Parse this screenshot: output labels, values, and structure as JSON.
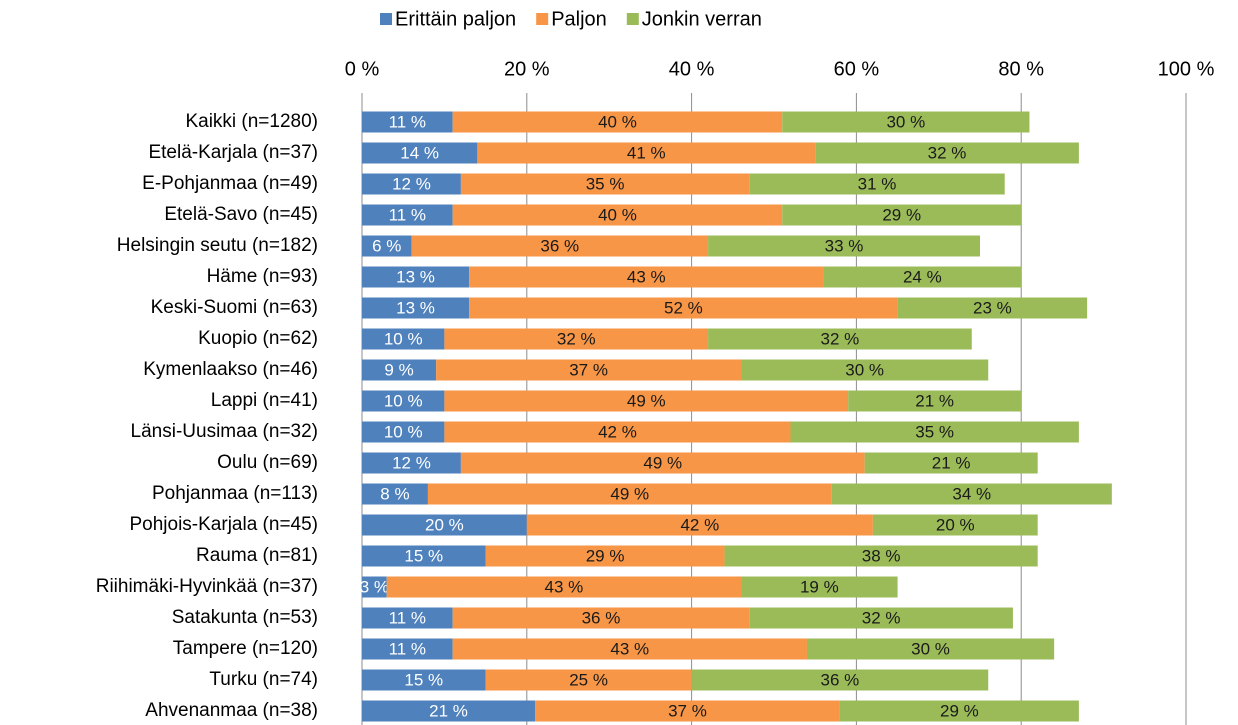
{
  "chart_data": {
    "type": "stacked-bar-horizontal",
    "categories": [
      "Kaikki (n=1280)",
      "Etelä-Karjala (n=37)",
      "E-Pohjanmaa (n=49)",
      "Etelä-Savo (n=45)",
      "Helsingin seutu (n=182)",
      "Häme (n=93)",
      "Keski-Suomi (n=63)",
      "Kuopio (n=62)",
      "Kymenlaakso (n=46)",
      "Lappi (n=41)",
      "Länsi-Uusimaa  (n=32)",
      "Oulu (n=69)",
      "Pohjanmaa (n=113)",
      "Pohjois-Karjala (n=45)",
      "Rauma (n=81)",
      "Riihimäki-Hyvinkää (n=37)",
      "Satakunta (n=53)",
      "Tampere (n=120)",
      "Turku (n=74)",
      "Ahvenanmaa (n=38)"
    ],
    "series": [
      {
        "name": "Erittäin paljon",
        "color": "#4f81bd",
        "label_color": "#ffffff",
        "values": [
          11,
          14,
          12,
          11,
          6,
          13,
          13,
          10,
          9,
          10,
          10,
          12,
          8,
          20,
          15,
          3,
          11,
          11,
          15,
          21
        ],
        "value_labels": [
          "11 %",
          "14 %",
          "12 %",
          "11 %",
          "6 %",
          "13 %",
          "13 %",
          "10 %",
          "9 %",
          "10 %",
          "10 %",
          "12 %",
          "8 %",
          "20 %",
          "15 %",
          "3 %",
          "11 %",
          "11 %",
          "15 %",
          "21 %"
        ]
      },
      {
        "name": "Paljon",
        "color": "#f79646",
        "label_color": "#1a1a1a",
        "values": [
          40,
          41,
          35,
          40,
          36,
          43,
          52,
          32,
          37,
          49,
          42,
          49,
          49,
          42,
          29,
          43,
          36,
          43,
          25,
          37
        ],
        "value_labels": [
          "40 %",
          "41 %",
          "35 %",
          "40 %",
          "36 %",
          "43 %",
          "52 %",
          "32 %",
          "37 %",
          "49 %",
          "42 %",
          "49 %",
          "49 %",
          "42 %",
          "29 %",
          "43 %",
          "36 %",
          "43 %",
          "25 %",
          "37 %"
        ]
      },
      {
        "name": "Jonkin verran",
        "color": "#9bbb59",
        "label_color": "#1a1a1a",
        "values": [
          30,
          32,
          31,
          29,
          33,
          24,
          23,
          32,
          30,
          21,
          35,
          21,
          34,
          20,
          38,
          19,
          32,
          30,
          36,
          29
        ],
        "value_labels": [
          "30 %",
          "32 %",
          "31 %",
          "29 %",
          "33 %",
          "24 %",
          "23 %",
          "32 %",
          "30 %",
          "21 %",
          "35 %",
          "21 %",
          "34 %",
          "20 %",
          "38 %",
          "19 %",
          "32 %",
          "30 %",
          "36 %",
          "29 %"
        ]
      }
    ],
    "xlim": [
      0,
      100
    ],
    "xticks": [
      {
        "value": 0,
        "label": "0 %"
      },
      {
        "value": 20,
        "label": "20 %"
      },
      {
        "value": 40,
        "label": "40 %"
      },
      {
        "value": 60,
        "label": "60 %"
      },
      {
        "value": 80,
        "label": "80 %"
      },
      {
        "value": 100,
        "label": "100 %"
      }
    ],
    "grid": true,
    "legend": "top"
  }
}
